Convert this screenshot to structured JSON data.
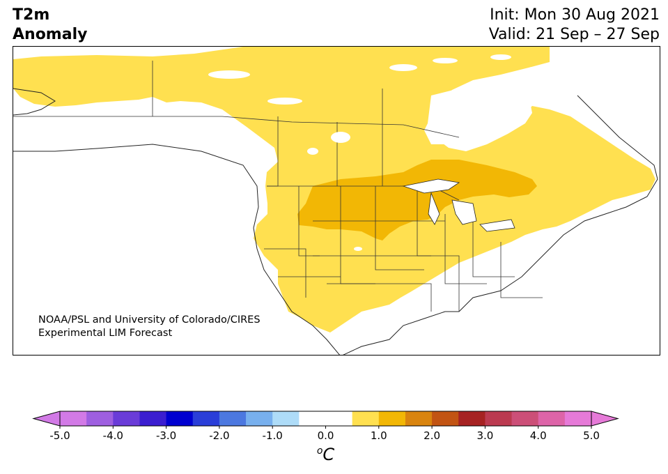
{
  "title": {
    "left_line1": "T2m",
    "left_line2": "Anomaly",
    "right_line1": "Init: Mon 30 Aug 2021",
    "right_line2": "Valid: 21 Sep – 27 Sep"
  },
  "credit": {
    "line1": "NOAA/PSL and University of Colorado/CIRES",
    "line2": "Experimental LIM Forecast"
  },
  "colorbar": {
    "ticks": [
      "-5.0",
      "-4.0",
      "-3.0",
      "-2.0",
      "-1.0",
      "0.0",
      "1.0",
      "2.0",
      "3.0",
      "4.0",
      "5.0"
    ],
    "unit_superscript": "o",
    "unit_letter": "C",
    "colors": [
      "#d27ae6",
      "#9e5fe0",
      "#6a3cd8",
      "#3b1ed0",
      "#0000d0",
      "#2a3ed8",
      "#4c78e0",
      "#78b0ee",
      "#aedcf8",
      "#ffffff",
      "#ffffff",
      "#ffe050",
      "#f2b705",
      "#d9840f",
      "#c25413",
      "#a62222",
      "#bb3a50",
      "#cc4f78",
      "#dd64a8",
      "#e67ad8"
    ],
    "min_extend_color": "#d27ae6",
    "max_extend_color": "#e67ad8"
  },
  "map": {
    "light_anomaly_color": "#ffe050",
    "strong_anomaly_color": "#f2b705",
    "border_color": "#333333"
  }
}
